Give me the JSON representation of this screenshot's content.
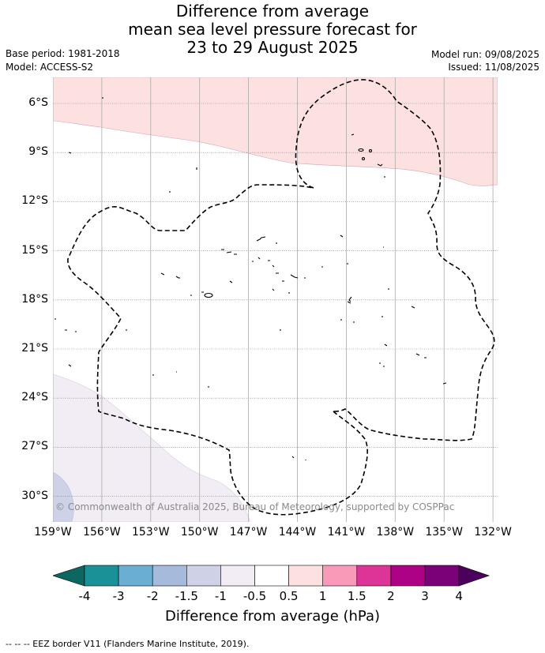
{
  "title": {
    "line1": "Difference from average",
    "line2": "mean sea level pressure forecast for",
    "line3": "23 to 29 August 2025"
  },
  "meta": {
    "base_period": "Base period: 1981-2018",
    "model": "Model: ACCESS-S2",
    "model_run": "Model run: 09/08/2025",
    "issued": "Issued: 11/08/2025"
  },
  "map": {
    "lat_labels": [
      "6°S",
      "9°S",
      "12°S",
      "15°S",
      "18°S",
      "21°S",
      "24°S",
      "27°S",
      "30°S"
    ],
    "lon_labels": [
      "159°W",
      "156°W",
      "153°W",
      "150°W",
      "147°W",
      "144°W",
      "141°W",
      "138°W",
      "135°W",
      "132°W"
    ],
    "copyright": "© Commonwealth of Australia 2025, Bureau of Meteorology, supported by COSPPac",
    "anomaly_colors": {
      "positive_0_5_to_1": "#fde0e0",
      "negative_0_5_to_1": "#f2ecf4",
      "negative_1_to_1_5": "#cfd2e7"
    }
  },
  "colorbar": {
    "labels": [
      "-4",
      "-3",
      "-2",
      "-1.5",
      "-1",
      "-0.5",
      "0.5",
      "1",
      "1.5",
      "2",
      "3",
      "4"
    ],
    "colors": [
      "#1a9196",
      "#6aaed4",
      "#a6badb",
      "#cfd2e7",
      "#f2ecf4",
      "#ffffff",
      "#fde0e0",
      "#f99ab8",
      "#dd3597",
      "#ad0186",
      "#7a0177"
    ],
    "low_extend_color": "#0e6660",
    "high_extend_color": "#4b005e",
    "title": "Difference from average (hPa)"
  },
  "footer": {
    "eez_note": "-- -- -- EEZ border V11 (Flanders Marine Institute, 2019)."
  }
}
